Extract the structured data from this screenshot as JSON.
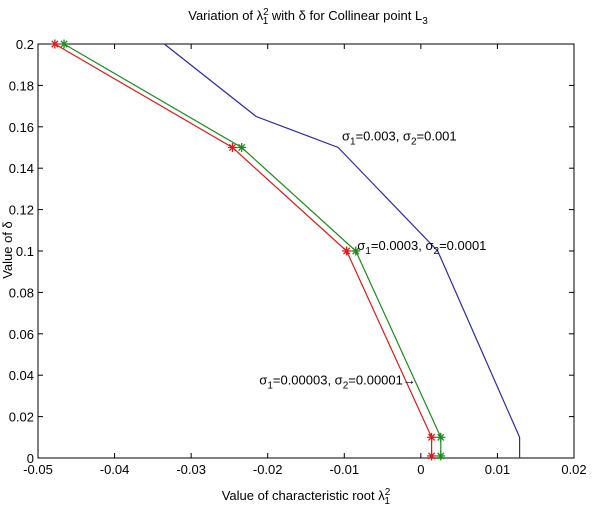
{
  "chart_data": {
    "type": "line",
    "title": "Variation of λ₁² with δ for Collinear point L₃",
    "title_parts": {
      "pre": "Variation of λ",
      "sub": "1",
      "sup": "2",
      "post": " with δ for Collinear point L",
      "post_sub": "3"
    },
    "xlabel": "Value of characteristic root λ₁²",
    "xlabel_parts": {
      "pre": "Value of characteristic root λ",
      "sub": "1",
      "sup": "2"
    },
    "ylabel": "Value of δ",
    "xlim": [
      -0.05,
      0.02
    ],
    "ylim": [
      0,
      0.2
    ],
    "xticks": [
      -0.05,
      -0.04,
      -0.03,
      -0.02,
      -0.01,
      0,
      0.01,
      0.02
    ],
    "xtick_labels": [
      "-0.05",
      "-0.04",
      "-0.03",
      "-0.02",
      "-0.01",
      "0",
      "0.01",
      "0.02"
    ],
    "yticks": [
      0,
      0.02,
      0.04,
      0.06,
      0.08,
      0.1,
      0.12,
      0.14,
      0.16,
      0.18,
      0.2
    ],
    "ytick_labels": [
      "0",
      "0.02",
      "0.04",
      "0.06",
      "0.08",
      "0.1",
      "0.12",
      "0.14",
      "0.16",
      "0.18",
      "0.2"
    ],
    "grid": false,
    "legend": "none",
    "series": [
      {
        "color": "#2a2aa8",
        "marker": "none",
        "x": [
          -0.0335,
          -0.0215,
          -0.0108,
          0.0022,
          0.0129,
          0.0129
        ],
        "y": [
          0.2,
          0.165,
          0.15,
          0.1,
          0.01,
          0
        ]
      },
      {
        "color": "#1a8c1a",
        "marker": "star",
        "x": [
          -0.0466,
          -0.0234,
          -0.0085,
          0.0026,
          0.0026
        ],
        "y": [
          0.2,
          0.15,
          0.1,
          0.01,
          0.001
        ]
      },
      {
        "color": "#dd1a1a",
        "marker": "star",
        "x": [
          -0.0478,
          -0.0246,
          -0.0097,
          0.0014,
          0.0014
        ],
        "y": [
          0.2,
          0.15,
          0.1,
          0.01,
          0.001
        ]
      }
    ],
    "annotations": [
      {
        "s1": "0.003",
        "s2": "0.001",
        "arrow": "",
        "x": -0.0103,
        "y": 0.1535
      },
      {
        "s1": "0.0003",
        "s2": "0.0001",
        "arrow": "",
        "x": -0.0083,
        "y": 0.1005
      },
      {
        "s1": "0.00003",
        "s2": "0.00001",
        "arrow": "→",
        "x": -0.0211,
        "y": 0.0355
      }
    ]
  }
}
